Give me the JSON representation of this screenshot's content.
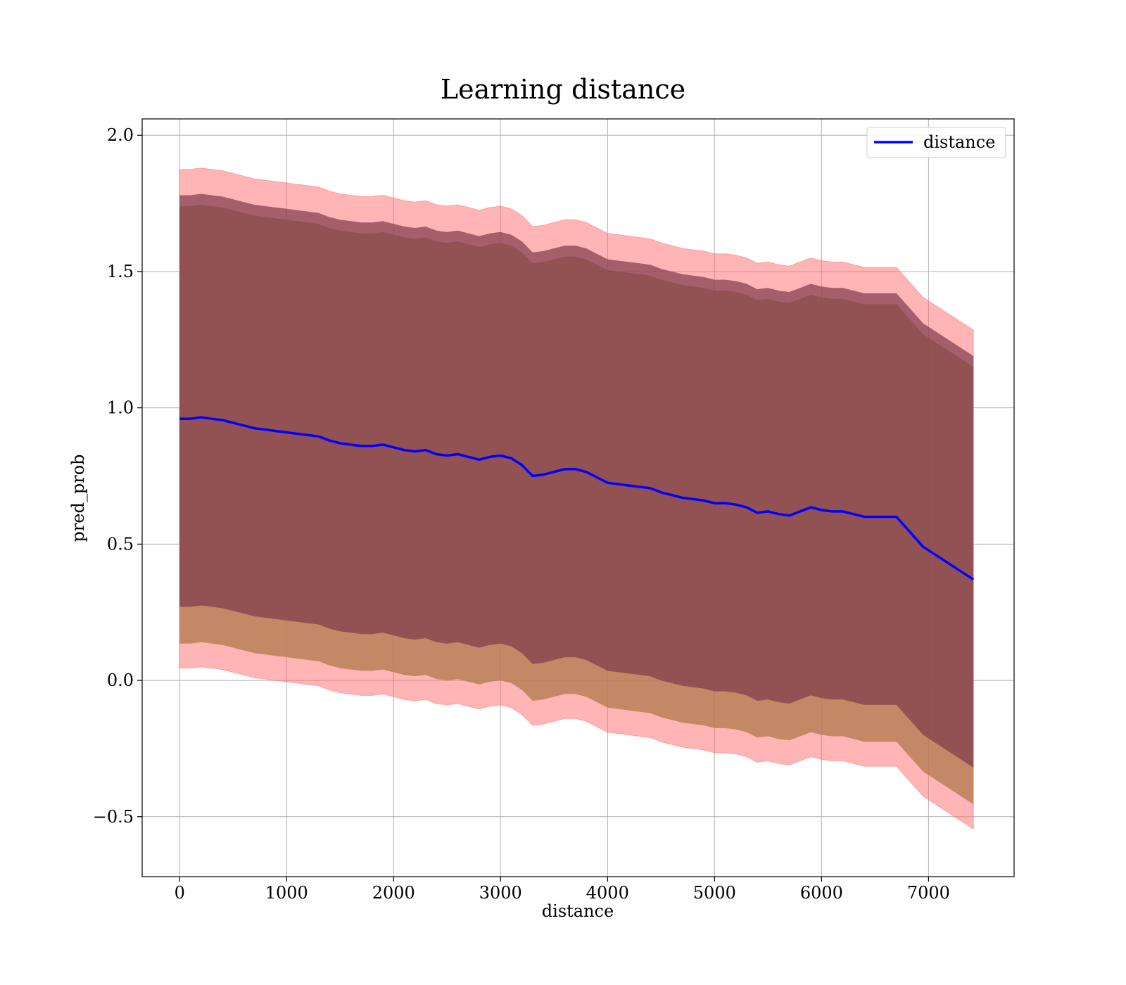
{
  "chart_data": {
    "type": "line",
    "title": "Learning distance",
    "xlabel": "distance",
    "ylabel": "pred_prob",
    "xlim": [
      -350,
      7800
    ],
    "ylim": [
      -0.72,
      2.06
    ],
    "xticks": [
      0,
      1000,
      2000,
      3000,
      4000,
      5000,
      6000,
      7000
    ],
    "xtick_labels": [
      "0",
      "1000",
      "2000",
      "3000",
      "4000",
      "5000",
      "6000",
      "7000"
    ],
    "yticks": [
      -0.5,
      0.0,
      0.5,
      1.0,
      1.5,
      2.0
    ],
    "ytick_labels": [
      "−0.5",
      "0.0",
      "0.5",
      "1.0",
      "1.5",
      "2.0"
    ],
    "grid": true,
    "legend": {
      "position": "top-right",
      "entries": [
        "distance"
      ]
    },
    "colors": {
      "line": "#0000ff",
      "outer_band": "#ff6b6b",
      "middle_band": "#b07a4e",
      "inner_band": "#7d3a4c"
    },
    "x": [
      0,
      100,
      200,
      300,
      400,
      500,
      600,
      700,
      800,
      900,
      1000,
      1100,
      1200,
      1300,
      1400,
      1500,
      1600,
      1700,
      1800,
      1900,
      2000,
      2100,
      2200,
      2300,
      2400,
      2500,
      2600,
      2700,
      2800,
      2900,
      3000,
      3100,
      3200,
      3300,
      3400,
      3500,
      3600,
      3700,
      3800,
      3900,
      4000,
      4100,
      4200,
      4300,
      4400,
      4500,
      4600,
      4700,
      4800,
      4900,
      5000,
      5100,
      5200,
      5300,
      5400,
      5500,
      5600,
      5700,
      5800,
      5900,
      6000,
      6100,
      6200,
      6300,
      6400,
      6500,
      6600,
      6700,
      6950,
      7420
    ],
    "series": [
      {
        "name": "distance",
        "values": [
          0.96,
          0.96,
          0.965,
          0.96,
          0.955,
          0.945,
          0.935,
          0.925,
          0.92,
          0.915,
          0.91,
          0.905,
          0.9,
          0.895,
          0.88,
          0.87,
          0.865,
          0.86,
          0.86,
          0.865,
          0.855,
          0.845,
          0.84,
          0.845,
          0.83,
          0.825,
          0.83,
          0.82,
          0.81,
          0.82,
          0.825,
          0.815,
          0.79,
          0.75,
          0.755,
          0.765,
          0.775,
          0.775,
          0.765,
          0.745,
          0.725,
          0.72,
          0.715,
          0.71,
          0.705,
          0.69,
          0.68,
          0.67,
          0.665,
          0.66,
          0.65,
          0.65,
          0.645,
          0.635,
          0.615,
          0.62,
          0.61,
          0.605,
          0.62,
          0.635,
          0.625,
          0.62,
          0.62,
          0.61,
          0.6,
          0.6,
          0.6,
          0.6,
          0.49,
          0.37
        ]
      }
    ],
    "bands": {
      "outer_half_width": 0.915,
      "middle_half_width": 0.825,
      "inner_half_width": 0.82
    }
  }
}
